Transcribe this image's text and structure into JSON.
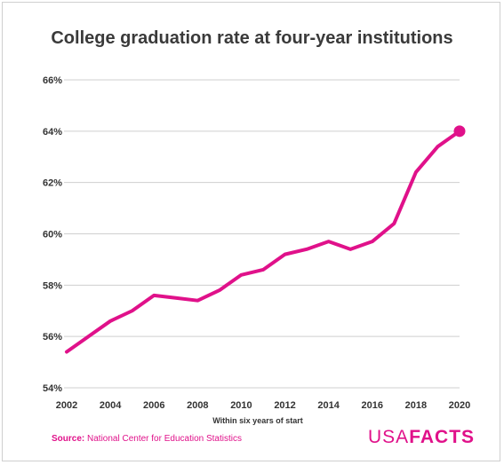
{
  "chart_data": {
    "type": "line",
    "title": "College graduation rate at four-year institutions",
    "xlabel": "Within six years of start",
    "ylabel": "",
    "x": [
      2002,
      2003,
      2004,
      2005,
      2006,
      2007,
      2008,
      2009,
      2010,
      2011,
      2012,
      2013,
      2014,
      2015,
      2016,
      2017,
      2018,
      2019,
      2020
    ],
    "series": [
      {
        "values": [
          55.4,
          56.0,
          56.6,
          57.0,
          57.6,
          57.5,
          57.4,
          57.8,
          58.4,
          58.6,
          59.2,
          59.4,
          59.7,
          59.4,
          59.7,
          60.4,
          62.4,
          63.4,
          64.0
        ]
      }
    ],
    "xticks": [
      2002,
      2004,
      2006,
      2008,
      2010,
      2012,
      2014,
      2016,
      2018,
      2020
    ],
    "xtick_labels": [
      "2002",
      "2004",
      "2006",
      "2008",
      "2010",
      "2012",
      "2014",
      "2016",
      "2018",
      "2020"
    ],
    "yticks": [
      54,
      56,
      58,
      60,
      62,
      64,
      66
    ],
    "ytick_labels": [
      "54%",
      "56%",
      "58%",
      "60%",
      "62%",
      "64%",
      "66%"
    ],
    "xlim": [
      2002,
      2020
    ],
    "ylim": [
      54,
      66
    ],
    "grid": true,
    "line_color": "#e0118a",
    "grid_color": "#cfcfcf",
    "end_marker": true
  },
  "footer": {
    "source_label": "Source:",
    "source_text": "National Center for Education Statistics",
    "logo_usa": "USA",
    "logo_facts": "FACTS"
  }
}
